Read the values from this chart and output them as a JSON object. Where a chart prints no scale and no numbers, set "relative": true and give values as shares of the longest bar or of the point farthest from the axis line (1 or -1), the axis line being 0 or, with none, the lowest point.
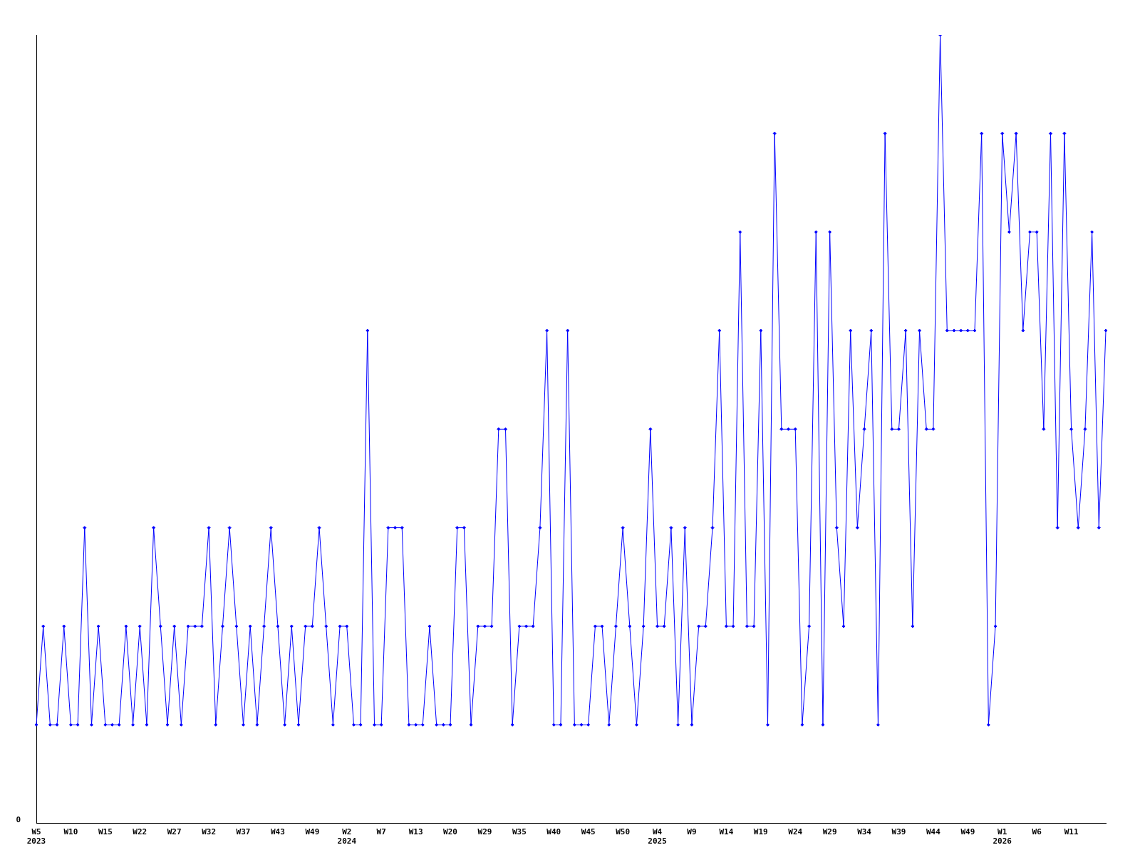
{
  "chart_data": {
    "type": "line",
    "relative": true,
    "categories": [
      "W5\n2023",
      null,
      null,
      null,
      null,
      "W10",
      null,
      null,
      null,
      null,
      "W15",
      null,
      null,
      null,
      null,
      "W22",
      null,
      null,
      null,
      null,
      "W27",
      null,
      null,
      null,
      null,
      "W32",
      null,
      null,
      null,
      null,
      "W37",
      null,
      null,
      null,
      null,
      "W43",
      null,
      null,
      null,
      null,
      "W49",
      null,
      null,
      null,
      null,
      "W2\n2024",
      null,
      null,
      null,
      null,
      "W7",
      null,
      null,
      null,
      null,
      "W13",
      null,
      null,
      null,
      null,
      "W20",
      null,
      null,
      null,
      null,
      "W29",
      null,
      null,
      null,
      null,
      "W35",
      null,
      null,
      null,
      null,
      "W40",
      null,
      null,
      null,
      null,
      "W45",
      null,
      null,
      null,
      null,
      "W50",
      null,
      null,
      null,
      null,
      "W4\n2025",
      null,
      null,
      null,
      null,
      "W9",
      null,
      null,
      null,
      null,
      "W14",
      null,
      null,
      null,
      null,
      "W19",
      null,
      null,
      null,
      null,
      "W24",
      null,
      null,
      null,
      null,
      "W29",
      null,
      null,
      null,
      null,
      "W34",
      null,
      null,
      null,
      null,
      "W39",
      null,
      null,
      null,
      null,
      "W44",
      null,
      null,
      null,
      null,
      "W49",
      null,
      null,
      null,
      null,
      "W1\n2026",
      null,
      null,
      null,
      null,
      "W6",
      null,
      null,
      null,
      null,
      "W11",
      null,
      null,
      null,
      null,
      null
    ],
    "series": [
      {
        "color": "#0000ff",
        "values": [
          0.125,
          0.25,
          0.125,
          0.125,
          0.25,
          0.125,
          0.125,
          0.375,
          0.125,
          0.25,
          0.125,
          0.125,
          0.125,
          0.25,
          0.125,
          0.25,
          0.125,
          0.375,
          0.25,
          0.125,
          0.25,
          0.125,
          0.25,
          0.25,
          0.25,
          0.375,
          0.125,
          0.25,
          0.375,
          0.25,
          0.125,
          0.25,
          0.125,
          0.25,
          0.375,
          0.25,
          0.125,
          0.25,
          0.125,
          0.25,
          0.25,
          0.375,
          0.25,
          0.125,
          0.25,
          0.25,
          0.125,
          0.125,
          0.625,
          0.125,
          0.125,
          0.375,
          0.375,
          0.375,
          0.125,
          0.125,
          0.125,
          0.25,
          0.125,
          0.125,
          0.125,
          0.375,
          0.375,
          0.125,
          0.25,
          0.25,
          0.25,
          0.5,
          0.5,
          0.125,
          0.25,
          0.25,
          0.25,
          0.375,
          0.625,
          0.125,
          0.125,
          0.625,
          0.125,
          0.125,
          0.125,
          0.25,
          0.25,
          0.125,
          0.25,
          0.375,
          0.25,
          0.125,
          0.25,
          0.5,
          0.25,
          0.25,
          0.375,
          0.125,
          0.375,
          0.125,
          0.25,
          0.25,
          0.375,
          0.625,
          0.25,
          0.25,
          0.75,
          0.25,
          0.25,
          0.625,
          0.125,
          0.875,
          0.5,
          0.5,
          0.5,
          0.125,
          0.25,
          0.75,
          0.125,
          0.75,
          0.375,
          0.25,
          0.625,
          0.375,
          0.5,
          0.625,
          0.125,
          0.875,
          0.5,
          0.5,
          0.625,
          0.25,
          0.625,
          0.5,
          0.5,
          1,
          0.625,
          0.625,
          0.625,
          0.625,
          0.625,
          0.875,
          0.125,
          0.25,
          0.875,
          0.75,
          0.875,
          0.625,
          0.75,
          0.75,
          0.5,
          0.875,
          0.375,
          0.875,
          0.5,
          0.375,
          0.5,
          0.75,
          0.375,
          0.625
        ]
      }
    ],
    "annotations": [
      "0"
    ],
    "marker": "diamond",
    "line_style": "solid"
  }
}
